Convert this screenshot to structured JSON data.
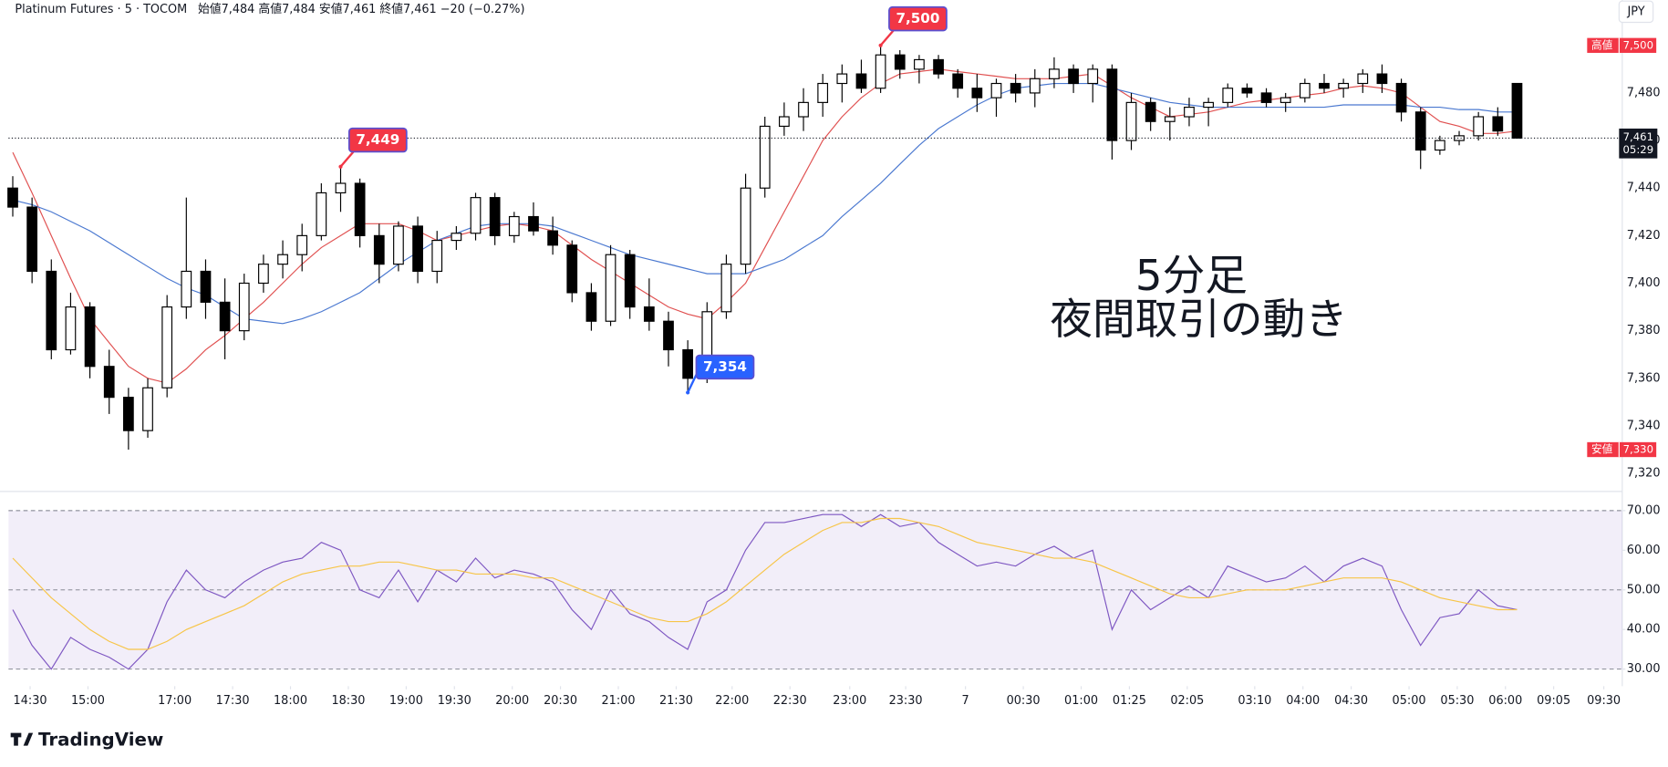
{
  "header": {
    "symbol": "Platinum Futures · 5 · TOCOM",
    "ohlc": "始値7,484 高値7,484 安値7,461 終値7,461 −20 (−0.27%)",
    "currency": "JPY"
  },
  "note": [
    "5分足",
    "夜間取引の動き"
  ],
  "brand": "TradingView",
  "chart_data": [
    {
      "type": "candlestick",
      "open": [
        7440,
        7432,
        7405,
        7372,
        7390,
        7365,
        7352,
        7338,
        7356,
        7390,
        7405,
        7392,
        7380,
        7400,
        7408,
        7412,
        7420,
        7438,
        7442,
        7420,
        7408,
        7424,
        7405,
        7418,
        7421,
        7436,
        7420,
        7428,
        7422,
        7416,
        7396,
        7384,
        7412,
        7390,
        7384,
        7372,
        7360,
        7388,
        7408,
        7440,
        7466,
        7470,
        7476,
        7484,
        7488,
        7482,
        7496,
        7490,
        7494,
        7488,
        7482,
        7478,
        7484,
        7480,
        7486,
        7490,
        7484,
        7490,
        7460,
        7476,
        7468,
        7470,
        7474,
        7476,
        7482,
        7480,
        7476,
        7478,
        7484,
        7482,
        7484,
        7488,
        7484,
        7472,
        7456,
        7460,
        7462,
        7470,
        7484
      ],
      "high": [
        7445,
        7436,
        7410,
        7396,
        7392,
        7372,
        7356,
        7360,
        7395,
        7436,
        7410,
        7402,
        7404,
        7412,
        7418,
        7425,
        7442,
        7449,
        7444,
        7425,
        7426,
        7428,
        7422,
        7424,
        7438,
        7438,
        7430,
        7434,
        7428,
        7418,
        7400,
        7416,
        7414,
        7402,
        7388,
        7376,
        7392,
        7412,
        7446,
        7470,
        7476,
        7482,
        7488,
        7492,
        7494,
        7500,
        7498,
        7496,
        7496,
        7490,
        7488,
        7486,
        7488,
        7490,
        7495,
        7492,
        7492,
        7492,
        7480,
        7478,
        7474,
        7478,
        7478,
        7484,
        7484,
        7482,
        7480,
        7486,
        7488,
        7486,
        7490,
        7492,
        7486,
        7474,
        7462,
        7464,
        7472,
        7474,
        7484
      ],
      "low": [
        7428,
        7400,
        7368,
        7370,
        7360,
        7345,
        7330,
        7335,
        7352,
        7385,
        7385,
        7368,
        7376,
        7396,
        7402,
        7405,
        7418,
        7430,
        7415,
        7400,
        7405,
        7400,
        7400,
        7414,
        7418,
        7416,
        7417,
        7420,
        7412,
        7392,
        7380,
        7382,
        7385,
        7380,
        7365,
        7354,
        7358,
        7385,
        7404,
        7436,
        7462,
        7464,
        7470,
        7476,
        7480,
        7480,
        7486,
        7484,
        7486,
        7478,
        7472,
        7470,
        7476,
        7474,
        7482,
        7480,
        7476,
        7452,
        7456,
        7464,
        7460,
        7466,
        7466,
        7474,
        7478,
        7474,
        7472,
        7476,
        7480,
        7478,
        7480,
        7480,
        7468,
        7448,
        7454,
        7458,
        7460,
        7462,
        7461
      ],
      "close": [
        7432,
        7405,
        7372,
        7390,
        7365,
        7352,
        7338,
        7356,
        7390,
        7405,
        7392,
        7380,
        7400,
        7408,
        7412,
        7420,
        7438,
        7442,
        7420,
        7408,
        7424,
        7405,
        7418,
        7421,
        7436,
        7420,
        7428,
        7422,
        7416,
        7396,
        7384,
        7412,
        7390,
        7384,
        7372,
        7360,
        7388,
        7408,
        7440,
        7466,
        7470,
        7476,
        7484,
        7488,
        7482,
        7496,
        7490,
        7494,
        7488,
        7482,
        7478,
        7484,
        7480,
        7486,
        7490,
        7484,
        7490,
        7460,
        7476,
        7468,
        7470,
        7474,
        7476,
        7482,
        7480,
        7476,
        7478,
        7484,
        7482,
        7484,
        7488,
        7484,
        7472,
        7456,
        7460,
        7462,
        7470,
        7464,
        7461
      ],
      "overlays": [
        {
          "color": "#e05050",
          "values": [
            7455,
            7438,
            7420,
            7402,
            7385,
            7375,
            7365,
            7360,
            7358,
            7364,
            7372,
            7378,
            7385,
            7392,
            7400,
            7408,
            7415,
            7420,
            7425,
            7425,
            7425,
            7422,
            7418,
            7420,
            7422,
            7424,
            7425,
            7424,
            7422,
            7416,
            7410,
            7405,
            7400,
            7395,
            7390,
            7387,
            7385,
            7392,
            7400,
            7415,
            7430,
            7445,
            7460,
            7470,
            7478,
            7484,
            7488,
            7489,
            7490,
            7489,
            7488,
            7487,
            7486,
            7486,
            7486,
            7487,
            7488,
            7483,
            7478,
            7474,
            7470,
            7471,
            7472,
            7474,
            7476,
            7477,
            7478,
            7479,
            7480,
            7482,
            7483,
            7482,
            7480,
            7474,
            7468,
            7466,
            7463,
            7463,
            7464
          ]
        },
        {
          "color": "#4a78d0",
          "values": [
            7435,
            7433,
            7430,
            7426,
            7422,
            7417,
            7412,
            7407,
            7402,
            7398,
            7395,
            7390,
            7385,
            7384,
            7383,
            7385,
            7388,
            7392,
            7396,
            7402,
            7408,
            7413,
            7418,
            7421,
            7424,
            7425,
            7425,
            7425,
            7424,
            7421,
            7418,
            7415,
            7412,
            7410,
            7408,
            7406,
            7404,
            7404,
            7404,
            7407,
            7410,
            7415,
            7420,
            7428,
            7435,
            7442,
            7450,
            7458,
            7465,
            7470,
            7475,
            7479,
            7482,
            7483,
            7484,
            7484,
            7484,
            7482,
            7480,
            7478,
            7476,
            7475,
            7474,
            7474,
            7474,
            7474,
            7474,
            7474,
            7474,
            7475,
            7475,
            7475,
            7475,
            7474,
            7474,
            7473,
            7473,
            7472,
            7472
          ]
        }
      ],
      "callouts": [
        {
          "index": 17,
          "value": 7449,
          "label": "7,449",
          "color": "#f23645",
          "side": "high"
        },
        {
          "index": 45,
          "value": 7500,
          "label": "7,500",
          "color": "#f23645",
          "side": "high"
        },
        {
          "index": 35,
          "value": 7354,
          "label": "7,354",
          "color": "#2962ff",
          "side": "low"
        }
      ],
      "tags": [
        {
          "name": "高値",
          "value": 7500,
          "label": "7,500"
        },
        {
          "name": "安値",
          "value": 7330,
          "label": "7,330"
        }
      ],
      "last": {
        "value": 7461,
        "label": "7,461",
        "countdown": "05:29"
      },
      "ylim": [
        7312.4,
        7519.1
      ],
      "yticks": [
        {
          "value": 7320,
          "label": "7,320"
        },
        {
          "value": 7340,
          "label": "7,340"
        },
        {
          "value": 7360,
          "label": "7,360"
        },
        {
          "value": 7380,
          "label": "7,380"
        },
        {
          "value": 7400,
          "label": "7,400"
        },
        {
          "value": 7420,
          "label": "7,420"
        },
        {
          "value": 7440,
          "label": "7,440"
        },
        {
          "value": 7460,
          "label": "7,460"
        },
        {
          "value": 7480,
          "label": "7,480"
        }
      ],
      "xlim": [
        -0.22,
        83.18
      ],
      "xticks": [
        {
          "value": 0.9,
          "label": "14:30"
        },
        {
          "value": 3.9,
          "label": "15:00"
        },
        {
          "value": 8.4,
          "label": "17:00"
        },
        {
          "value": 11.4,
          "label": "17:30"
        },
        {
          "value": 14.4,
          "label": "18:00"
        },
        {
          "value": 17.4,
          "label": "18:30"
        },
        {
          "value": 20.4,
          "label": "19:00"
        },
        {
          "value": 22.9,
          "label": "19:30"
        },
        {
          "value": 25.9,
          "label": "20:00"
        },
        {
          "value": 28.4,
          "label": "20:30"
        },
        {
          "value": 31.4,
          "label": "21:00"
        },
        {
          "value": 34.4,
          "label": "21:30"
        },
        {
          "value": 37.3,
          "label": "22:00"
        },
        {
          "value": 40.3,
          "label": "22:30"
        },
        {
          "value": 43.4,
          "label": "23:00"
        },
        {
          "value": 46.3,
          "label": "23:30"
        },
        {
          "value": 49.4,
          "label": "7"
        },
        {
          "value": 52.4,
          "label": "00:30"
        },
        {
          "value": 55.4,
          "label": "01:00"
        },
        {
          "value": 57.9,
          "label": "01:25"
        },
        {
          "value": 60.9,
          "label": "02:05"
        },
        {
          "value": 64.4,
          "label": "03:10"
        },
        {
          "value": 66.9,
          "label": "04:00"
        },
        {
          "value": 69.4,
          "label": "04:30"
        },
        {
          "value": 72.4,
          "label": "05:00"
        },
        {
          "value": 74.9,
          "label": "05:30"
        },
        {
          "value": 77.4,
          "label": "06:00"
        },
        {
          "value": 79.9,
          "label": "09:05"
        },
        {
          "value": 82.5,
          "label": "09:30"
        }
      ]
    },
    {
      "type": "line",
      "series": [
        {
          "color": "#7e57c2",
          "values": [
            45,
            36,
            30,
            38,
            35,
            33,
            30,
            35,
            47,
            55,
            50,
            48,
            52,
            55,
            57,
            58,
            62,
            60,
            50,
            48,
            55,
            47,
            55,
            52,
            58,
            53,
            55,
            54,
            52,
            45,
            40,
            50,
            44,
            42,
            38,
            35,
            47,
            50,
            60,
            67,
            67,
            68,
            69,
            69,
            66,
            69,
            66,
            67,
            62,
            59,
            56,
            57,
            56,
            59,
            61,
            58,
            60,
            40,
            50,
            45,
            48,
            51,
            48,
            56,
            54,
            52,
            53,
            56,
            52,
            56,
            58,
            56,
            45,
            36,
            43,
            44,
            50,
            46,
            45
          ]
        },
        {
          "color": "#f7c548",
          "values": [
            58,
            53,
            48,
            44,
            40,
            37,
            35,
            35,
            37,
            40,
            42,
            44,
            46,
            49,
            52,
            54,
            55,
            56,
            56,
            57,
            57,
            56,
            55,
            55,
            54,
            54,
            54,
            53,
            53,
            51,
            49,
            47,
            45,
            43,
            42,
            42,
            44,
            47,
            51,
            55,
            59,
            62,
            65,
            67,
            67,
            68,
            68,
            67,
            66,
            64,
            62,
            61,
            60,
            59,
            58,
            58,
            57,
            55,
            53,
            51,
            49,
            48,
            48,
            49,
            50,
            50,
            50,
            51,
            52,
            53,
            53,
            53,
            52,
            50,
            48,
            47,
            46,
            45,
            45
          ]
        }
      ],
      "band": [
        30,
        70
      ],
      "ylim": [
        27.05,
        72.68
      ],
      "yticks": [
        {
          "value": 30,
          "label": "30.00"
        },
        {
          "value": 40,
          "label": "40.00"
        },
        {
          "value": 50,
          "label": "50.00"
        },
        {
          "value": 60,
          "label": "60.00"
        },
        {
          "value": 70,
          "label": "70.00"
        }
      ],
      "dashed": [
        30,
        50,
        70
      ]
    }
  ]
}
